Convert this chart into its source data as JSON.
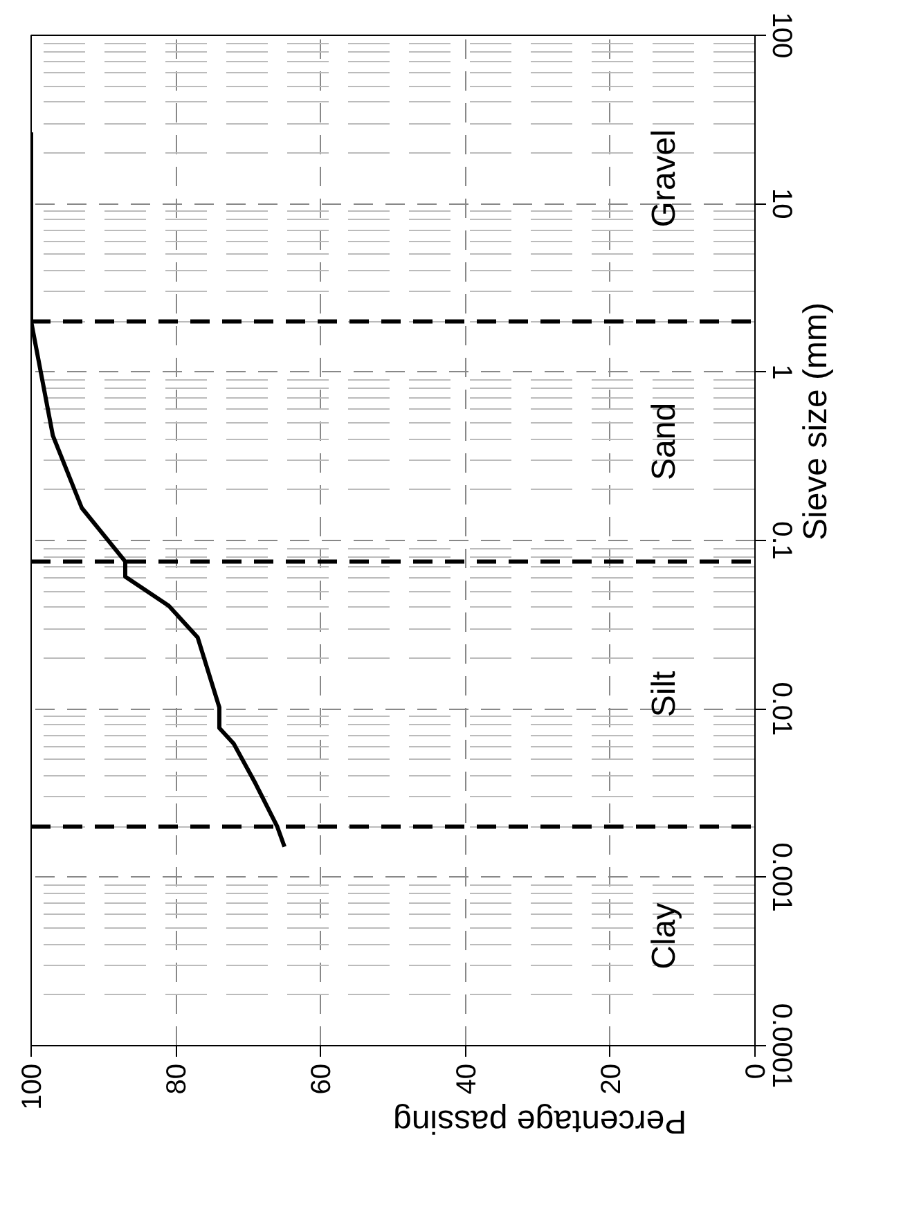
{
  "chart_data": {
    "type": "line",
    "xlabel": "Percentage passing",
    "ylabel": "Sieve size (mm)",
    "x": [
      100,
      100,
      97,
      93,
      87,
      87,
      81,
      77,
      74,
      74,
      72,
      69,
      66,
      65
    ],
    "series": [
      {
        "color": "#000000",
        "values": [
          26.5,
          2.0,
          0.42,
          0.156,
          0.075,
          0.061,
          0.041,
          0.0266,
          0.0102,
          0.0077,
          0.0062,
          0.0036,
          0.002,
          0.00152
        ]
      }
    ],
    "log": "y",
    "ylim": [
      0.0001,
      100
    ],
    "yticks": [
      0.0001,
      0.001,
      0.01,
      0.1,
      1,
      10,
      100
    ],
    "xlim": [
      100,
      0
    ],
    "xticks": [
      0,
      20,
      40,
      60,
      80,
      100
    ],
    "grid": true,
    "marker": "none",
    "line_style": "solid",
    "ref_lines": [
      {
        "axis": "y",
        "value": 0.002,
        "color": "#000000",
        "line_style": "dashed"
      },
      {
        "axis": "y",
        "value": 0.075,
        "color": "#000000",
        "line_style": "dashed"
      },
      {
        "axis": "y",
        "value": 2,
        "color": "#000000",
        "line_style": "dashed"
      }
    ],
    "annotations": [
      "Clay",
      "Silt",
      "Sand",
      "Gravel"
    ]
  }
}
